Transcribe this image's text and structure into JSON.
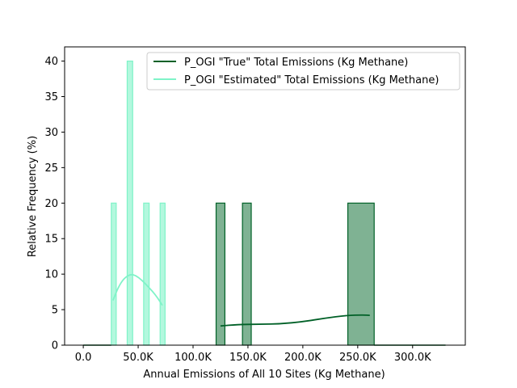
{
  "chart_data": {
    "type": "bar",
    "title": "",
    "xlabel": "Annual Emissions of All 10 Sites (Kg Methane)",
    "ylabel": "Relative Frequency (%)",
    "xlim": [
      -17000,
      348000
    ],
    "ylim": [
      0,
      42
    ],
    "x_ticks": [
      0,
      50000,
      100000,
      150000,
      200000,
      250000,
      300000
    ],
    "x_tick_labels": [
      "0.0",
      "50.0K",
      "100.0K",
      "150.0K",
      "200.0K",
      "250.0K",
      "300.0K"
    ],
    "y_ticks": [
      0,
      5,
      10,
      15,
      20,
      25,
      30,
      35,
      40
    ],
    "y_tick_labels": [
      "0",
      "5",
      "10",
      "15",
      "20",
      "25",
      "30",
      "35",
      "40"
    ],
    "legend_position": "top-right",
    "series": [
      {
        "name": "P_OGI \"True\" Total Emissions (Kg Methane)",
        "color": "#006027",
        "fill": "#7fb293",
        "bins": [
          {
            "x0": 121000,
            "x1": 129000,
            "value": 20
          },
          {
            "x0": 145000,
            "x1": 153000,
            "value": 20
          },
          {
            "x0": 241000,
            "x1": 265000,
            "value": 20
          }
        ],
        "kde": [
          [
            125000,
            2.7
          ],
          [
            140000,
            2.9
          ],
          [
            160000,
            2.95
          ],
          [
            180000,
            3.0
          ],
          [
            200000,
            3.3
          ],
          [
            220000,
            3.8
          ],
          [
            240000,
            4.2
          ],
          [
            255000,
            4.25
          ],
          [
            261000,
            4.2
          ]
        ]
      },
      {
        "name": "P_OGI \"Estimated\" Total Emissions (Kg Methane)",
        "color": "#7ff3c8",
        "fill": "#b3f8de",
        "bins": [
          {
            "x0": 25500,
            "x1": 30000,
            "value": 20
          },
          {
            "x0": 40000,
            "x1": 45000,
            "value": 40
          },
          {
            "x0": 55000,
            "x1": 60000,
            "value": 20
          },
          {
            "x0": 70000,
            "x1": 74500,
            "value": 20
          }
        ],
        "kde": [
          [
            27000,
            6.3
          ],
          [
            32000,
            8.2
          ],
          [
            37000,
            9.4
          ],
          [
            43000,
            10.0
          ],
          [
            48000,
            9.8
          ],
          [
            53000,
            9.2
          ],
          [
            58000,
            8.4
          ],
          [
            63000,
            7.6
          ],
          [
            68000,
            6.6
          ],
          [
            72000,
            5.6
          ]
        ]
      }
    ],
    "baseline_segments": [
      [
        0,
        25500
      ],
      [
        265000,
        330000
      ]
    ]
  }
}
